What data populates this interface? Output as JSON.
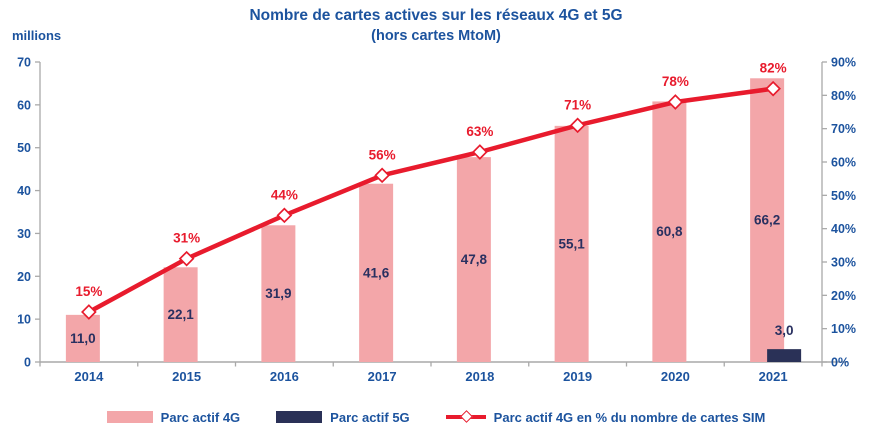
{
  "title": {
    "main": "Nombre de cartes actives sur les réseaux 4G et 5G",
    "sub": "(hors cartes MtoM)"
  },
  "axes": {
    "left_unit": "millions"
  },
  "colors": {
    "bar_4g": "#F3A6A9",
    "bar_5g": "#2A3157",
    "line": "#E81B2D",
    "percent_label": "#E81B2D",
    "text_blue": "#1C539E",
    "value_label": "#293060",
    "axis_gray": "#A9A9A9"
  },
  "legend": [
    {
      "label": "Parc actif 4G",
      "swatch": "bar-4g"
    },
    {
      "label": "Parc actif 5G",
      "swatch": "bar-5g"
    },
    {
      "label": "Parc actif 4G en % du nombre de cartes SIM",
      "swatch": "line"
    }
  ],
  "chart_data": {
    "type": "bar",
    "title": "Nombre de cartes actives sur les réseaux 4G et 5G (hors cartes MtoM)",
    "categories": [
      "2014",
      "2015",
      "2016",
      "2017",
      "2018",
      "2019",
      "2020",
      "2021"
    ],
    "series": [
      {
        "name": "Parc actif 4G",
        "type": "bar",
        "axis": "left",
        "values": [
          11.0,
          22.1,
          31.9,
          41.6,
          47.8,
          55.1,
          60.8,
          66.2
        ],
        "labels": [
          "11,0",
          "22,1",
          "31,9",
          "41,6",
          "47,8",
          "55,1",
          "60,8",
          "66,2"
        ]
      },
      {
        "name": "Parc actif 5G",
        "type": "bar",
        "axis": "left",
        "values": [
          null,
          null,
          null,
          null,
          null,
          null,
          null,
          3.0
        ],
        "labels": [
          null,
          null,
          null,
          null,
          null,
          null,
          null,
          "3,0"
        ]
      },
      {
        "name": "Parc actif 4G en % du nombre de cartes SIM",
        "type": "line",
        "axis": "right",
        "values": [
          15,
          31,
          44,
          56,
          63,
          71,
          78,
          82
        ],
        "labels": [
          "15%",
          "31%",
          "44%",
          "56%",
          "63%",
          "71%",
          "78%",
          "82%"
        ]
      }
    ],
    "left_axis": {
      "min": 0,
      "max": 70,
      "step": 10,
      "ticks": [
        "0",
        "10",
        "20",
        "30",
        "40",
        "50",
        "60",
        "70"
      ],
      "unit": "millions"
    },
    "right_axis": {
      "min": 0,
      "max": 90,
      "step": 10,
      "ticks": [
        "0%",
        "10%",
        "20%",
        "30%",
        "40%",
        "50%",
        "60%",
        "70%",
        "80%",
        "90%"
      ]
    },
    "grid": false,
    "legend_position": "bottom"
  }
}
